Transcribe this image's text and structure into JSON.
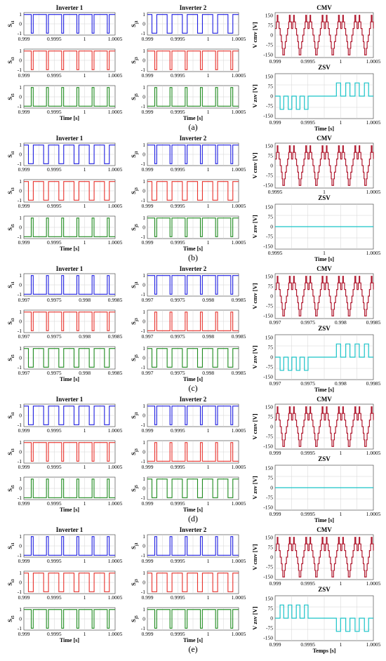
{
  "colors": {
    "s1": "#1f1fe0",
    "s3": "#e8322c",
    "s5": "#1e8a1e",
    "cmv": "#b0182e",
    "zsv": "#19c3c8"
  },
  "chart_data": [
    {
      "caption": "(a)",
      "type": "line",
      "titles": {
        "inv1": "Inverter 1",
        "inv2": "Inverter 2",
        "cmv": "CMV",
        "zsv": "ZSV"
      },
      "s_ylim": [
        -1.2,
        1.2
      ],
      "s_yticks": [
        "1",
        "0",
        "-1"
      ],
      "x_ticks": [
        "0.999",
        "0.9995",
        "1",
        "1.0005"
      ],
      "x_label": "Time [s]",
      "x_ticks_right": [
        "0.999",
        "0.9995",
        "1",
        "1.0005"
      ],
      "x_label_right": "Time [s]",
      "inv1": {
        "S1": {
          "label": "S",
          "sub": "i1",
          "pattern": "high",
          "pulses": 6
        },
        "S3": {
          "label": "S",
          "sub": "i3",
          "pattern": "high",
          "pulses": 6
        },
        "S5": {
          "label": "S",
          "sub": "i5",
          "pattern": "low",
          "pulses": 6
        }
      },
      "inv2": {
        "S1": {
          "label": "S",
          "sub": "j1",
          "pattern": "mid",
          "pulses": 6
        },
        "S3": {
          "label": "S",
          "sub": "j3",
          "pattern": "high",
          "pulses": 6
        },
        "S5": {
          "label": "S",
          "sub": "j5",
          "pattern": "low",
          "pulses": 6
        }
      },
      "cmv": {
        "ylabel": "V cmv [V]",
        "yticks": [
          "150",
          "75",
          "0",
          "-75",
          "-150"
        ],
        "ylim": [
          -170,
          170
        ],
        "cycles": 6
      },
      "zsv": {
        "ylabel": "V zsv [V]",
        "yticks": [
          "150",
          "75",
          "0",
          "-75",
          "-150"
        ],
        "ylim": [
          -170,
          170
        ],
        "mode": "neg-then-pos",
        "amplitude": 100
      }
    },
    {
      "caption": "(b)",
      "type": "line",
      "titles": {
        "inv1": "Inverter 1",
        "inv2": "Inverter 2",
        "cmv": "CMV",
        "zsv": "ZSV"
      },
      "s_ylim": [
        -1.2,
        1.2
      ],
      "s_yticks": [
        "1",
        "0",
        "-1"
      ],
      "x_ticks": [
        "0.999",
        "0.9995",
        "1",
        "1.0005"
      ],
      "x_label": "Time [s]",
      "x_ticks_right": [
        "0.9995",
        "1",
        "1.0005"
      ],
      "x_label_right": "Time [s]",
      "inv1": {
        "S1": {
          "label": "S",
          "sub": "i1",
          "pattern": "mid",
          "pulses": 6
        },
        "S3": {
          "label": "S",
          "sub": "i3",
          "pattern": "mid",
          "pulses": 6
        },
        "S5": {
          "label": "S",
          "sub": "i5",
          "pattern": "low",
          "pulses": 6
        }
      },
      "inv2": {
        "S1": {
          "label": "S",
          "sub": "j1",
          "pattern": "high",
          "pulses": 6
        },
        "S3": {
          "label": "S",
          "sub": "j3",
          "pattern": "mid",
          "pulses": 6
        },
        "S5": {
          "label": "S",
          "sub": "j5",
          "pattern": "high",
          "pulses": 6
        }
      },
      "cmv": {
        "ylabel": "V cmv [V]",
        "yticks": [
          "150",
          "75",
          "0",
          "-75",
          "-150"
        ],
        "ylim": [
          -170,
          170
        ],
        "cycles": 6
      },
      "zsv": {
        "ylabel": "V zsv [V]",
        "yticks": [
          "150",
          "75",
          "0",
          "-75",
          "-150"
        ],
        "ylim": [
          -170,
          170
        ],
        "mode": "zero",
        "amplitude": 0
      }
    },
    {
      "caption": "(c)",
      "type": "line",
      "titles": {
        "inv1": "Inverter 1",
        "inv2": "Inverter 2",
        "cmv": "CMV",
        "zsv": "ZSV"
      },
      "s_ylim": [
        -1.2,
        1.2
      ],
      "s_yticks": [
        "1",
        "0",
        "-1"
      ],
      "x_ticks": [
        "0.997",
        "0.9975",
        "0.998",
        "0.9985"
      ],
      "x_label": "Time [s]",
      "x_ticks_right": [
        "0.997",
        "0.9975",
        "0.998",
        "0.9985"
      ],
      "x_label_right": "Time [s]",
      "inv1": {
        "S1": {
          "label": "S",
          "sub": "i1",
          "pattern": "low",
          "pulses": 6
        },
        "S3": {
          "label": "S",
          "sub": "i3",
          "pattern": "high",
          "pulses": 6
        },
        "S5": {
          "label": "S",
          "sub": "i5",
          "pattern": "mid",
          "pulses": 6
        }
      },
      "inv2": {
        "S1": {
          "label": "S",
          "sub": "j1",
          "pattern": "high",
          "pulses": 6
        },
        "S3": {
          "label": "S",
          "sub": "j3",
          "pattern": "low",
          "pulses": 6
        },
        "S5": {
          "label": "S",
          "sub": "j5",
          "pattern": "mid",
          "pulses": 6
        }
      },
      "cmv": {
        "ylabel": "V cmv [V]",
        "yticks": [
          "150",
          "75",
          "0",
          "-75",
          "-150"
        ],
        "ylim": [
          -170,
          170
        ],
        "cycles": 6
      },
      "zsv": {
        "ylabel": "V zsv [V]",
        "yticks": [
          "150",
          "75",
          "0",
          "-75",
          "-150"
        ],
        "ylim": [
          -170,
          170
        ],
        "mode": "neg-then-pos",
        "amplitude": 100
      }
    },
    {
      "caption": "(d)",
      "type": "line",
      "titles": {
        "inv1": "Inverter 1",
        "inv2": "Inverter 2",
        "cmv": "CMV",
        "zsv": "ZSV"
      },
      "s_ylim": [
        -1.2,
        1.2
      ],
      "s_yticks": [
        "1",
        "0",
        "-1"
      ],
      "x_ticks": [
        "0.999",
        "0.9995",
        "1",
        "1.0005"
      ],
      "x_label": "Time [s]",
      "x_ticks_right": [
        "0.999",
        "0.9995",
        "1",
        "1.0005"
      ],
      "x_label_right": "Time [s]",
      "inv1": {
        "S1": {
          "label": "S",
          "sub": "i1",
          "pattern": "mid",
          "pulses": 6
        },
        "S3": {
          "label": "S",
          "sub": "i3",
          "pattern": "high",
          "pulses": 6
        },
        "S5": {
          "label": "S",
          "sub": "i5",
          "pattern": "low",
          "pulses": 6
        }
      },
      "inv2": {
        "S1": {
          "label": "S",
          "sub": "j1",
          "pattern": "high",
          "pulses": 6
        },
        "S3": {
          "label": "S",
          "sub": "j3",
          "pattern": "low",
          "pulses": 6
        },
        "S5": {
          "label": "S",
          "sub": "j5",
          "pattern": "mid",
          "pulses": 6
        }
      },
      "cmv": {
        "ylabel": "V cmv [V]",
        "yticks": [
          "150",
          "75",
          "0",
          "-75",
          "-150"
        ],
        "ylim": [
          -170,
          170
        ],
        "cycles": 6
      },
      "zsv": {
        "ylabel": "V zsv [V]",
        "yticks": [
          "150",
          "75",
          "0",
          "-75",
          "-150"
        ],
        "ylim": [
          -170,
          170
        ],
        "mode": "zero",
        "amplitude": 0
      }
    },
    {
      "caption": "(e)",
      "type": "line",
      "titles": {
        "inv1": "Inverter 1",
        "inv2": "Inverter 2",
        "cmv": "CMV",
        "zsv": "ZSV"
      },
      "s_ylim": [
        -1.2,
        1.2
      ],
      "s_yticks": [
        "1",
        "0",
        "-1"
      ],
      "x_ticks": [
        "0.999",
        "0.9995",
        "1",
        "1.0005"
      ],
      "x_label": "Time [s]",
      "x_ticks_right": [
        "0.999",
        "0.9995",
        "1",
        "1.0005"
      ],
      "x_label_right": "Temps [s]",
      "inv1": {
        "S1": {
          "label": "S",
          "sub": "i1",
          "pattern": "low",
          "pulses": 6
        },
        "S3": {
          "label": "S",
          "sub": "i3",
          "pattern": "mid",
          "pulses": 6
        },
        "S5": {
          "label": "S",
          "sub": "i5",
          "pattern": "high",
          "pulses": 6
        }
      },
      "inv2": {
        "S1": {
          "label": "S",
          "sub": "j1",
          "pattern": "low",
          "pulses": 6
        },
        "S3": {
          "label": "S",
          "sub": "j3",
          "pattern": "mid",
          "pulses": 6
        },
        "S5": {
          "label": "S",
          "sub": "j5",
          "pattern": "high",
          "pulses": 6
        }
      },
      "cmv": {
        "ylabel": "V cmv [V]",
        "yticks": [
          "150",
          "75",
          "0",
          "-75",
          "-150"
        ],
        "ylim": [
          -170,
          170
        ],
        "cycles": 6
      },
      "zsv": {
        "ylabel": "V zsv [V]",
        "yticks": [
          "150",
          "75",
          "0",
          "-75",
          "-150"
        ],
        "ylim": [
          -170,
          170
        ],
        "mode": "pos-then-neg",
        "amplitude": 100
      }
    }
  ]
}
